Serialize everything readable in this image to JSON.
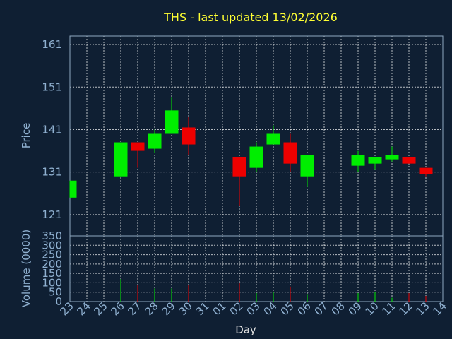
{
  "chart_data": {
    "type": "candlestick",
    "title": "THS - last updated 13/02/2026",
    "xlabel": "Day",
    "price_panel": {
      "ylabel": "Price",
      "ylim": [
        116,
        163
      ],
      "yticks": [
        121,
        131,
        141,
        151,
        161
      ]
    },
    "volume_panel": {
      "ylabel": "Volume (0000)",
      "ylim": [
        0,
        350
      ],
      "yticks": [
        0,
        50,
        100,
        150,
        200,
        250,
        300,
        350
      ]
    },
    "days": [
      "23",
      "24",
      "25",
      "26",
      "27",
      "28",
      "29",
      "30",
      "31",
      "01",
      "02",
      "03",
      "04",
      "05",
      "06",
      "07",
      "08",
      "09",
      "10",
      "11",
      "12",
      "13",
      "14"
    ],
    "candles": [
      {
        "day": "23",
        "open": 125.0,
        "close": 129.0,
        "high": 129.0,
        "low": 125.0,
        "volume": 0
      },
      {
        "day": "26",
        "open": 130.0,
        "close": 138.0,
        "high": 138.0,
        "low": 130.0,
        "volume": 120
      },
      {
        "day": "27",
        "open": 138.0,
        "close": 136.0,
        "high": 138.0,
        "low": 132.0,
        "volume": 90
      },
      {
        "day": "28",
        "open": 136.5,
        "close": 140.0,
        "high": 141.0,
        "low": 135.5,
        "volume": 70
      },
      {
        "day": "29",
        "open": 140.0,
        "close": 145.5,
        "high": 148.5,
        "low": 140.0,
        "volume": 70
      },
      {
        "day": "30",
        "open": 141.5,
        "close": 137.5,
        "high": 144.0,
        "low": 135.0,
        "volume": 90
      },
      {
        "day": "02",
        "open": 134.5,
        "close": 130.0,
        "high": 134.5,
        "low": 123.0,
        "volume": 100
      },
      {
        "day": "03",
        "open": 132.0,
        "close": 137.0,
        "high": 138.0,
        "low": 131.0,
        "volume": 45
      },
      {
        "day": "04",
        "open": 137.5,
        "close": 140.0,
        "high": 142.0,
        "low": 137.5,
        "volume": 50
      },
      {
        "day": "05",
        "open": 138.0,
        "close": 133.0,
        "high": 140.0,
        "low": 131.0,
        "volume": 80
      },
      {
        "day": "06",
        "open": 130.0,
        "close": 135.0,
        "high": 135.0,
        "low": 127.5,
        "volume": 40
      },
      {
        "day": "09",
        "open": 132.5,
        "close": 135.0,
        "high": 136.0,
        "low": 131.0,
        "volume": 45
      },
      {
        "day": "10",
        "open": 133.0,
        "close": 134.5,
        "high": 134.5,
        "low": 131.5,
        "volume": 50
      },
      {
        "day": "11",
        "open": 134.0,
        "close": 135.0,
        "high": 137.0,
        "low": 133.5,
        "volume": 20
      },
      {
        "day": "12",
        "open": 134.5,
        "close": 133.0,
        "high": 134.5,
        "low": 133.0,
        "volume": 45
      },
      {
        "day": "13",
        "open": 132.0,
        "close": 130.5,
        "high": 132.0,
        "low": 130.0,
        "volume": 30
      }
    ],
    "colors": {
      "background": "#0f1f33",
      "up": "#00ee00",
      "down": "#ee0000",
      "grid": "#ffffff",
      "frame": "#8fa8c0",
      "text": "#8fb0d0",
      "title": "#ffff33"
    },
    "grid": true
  }
}
